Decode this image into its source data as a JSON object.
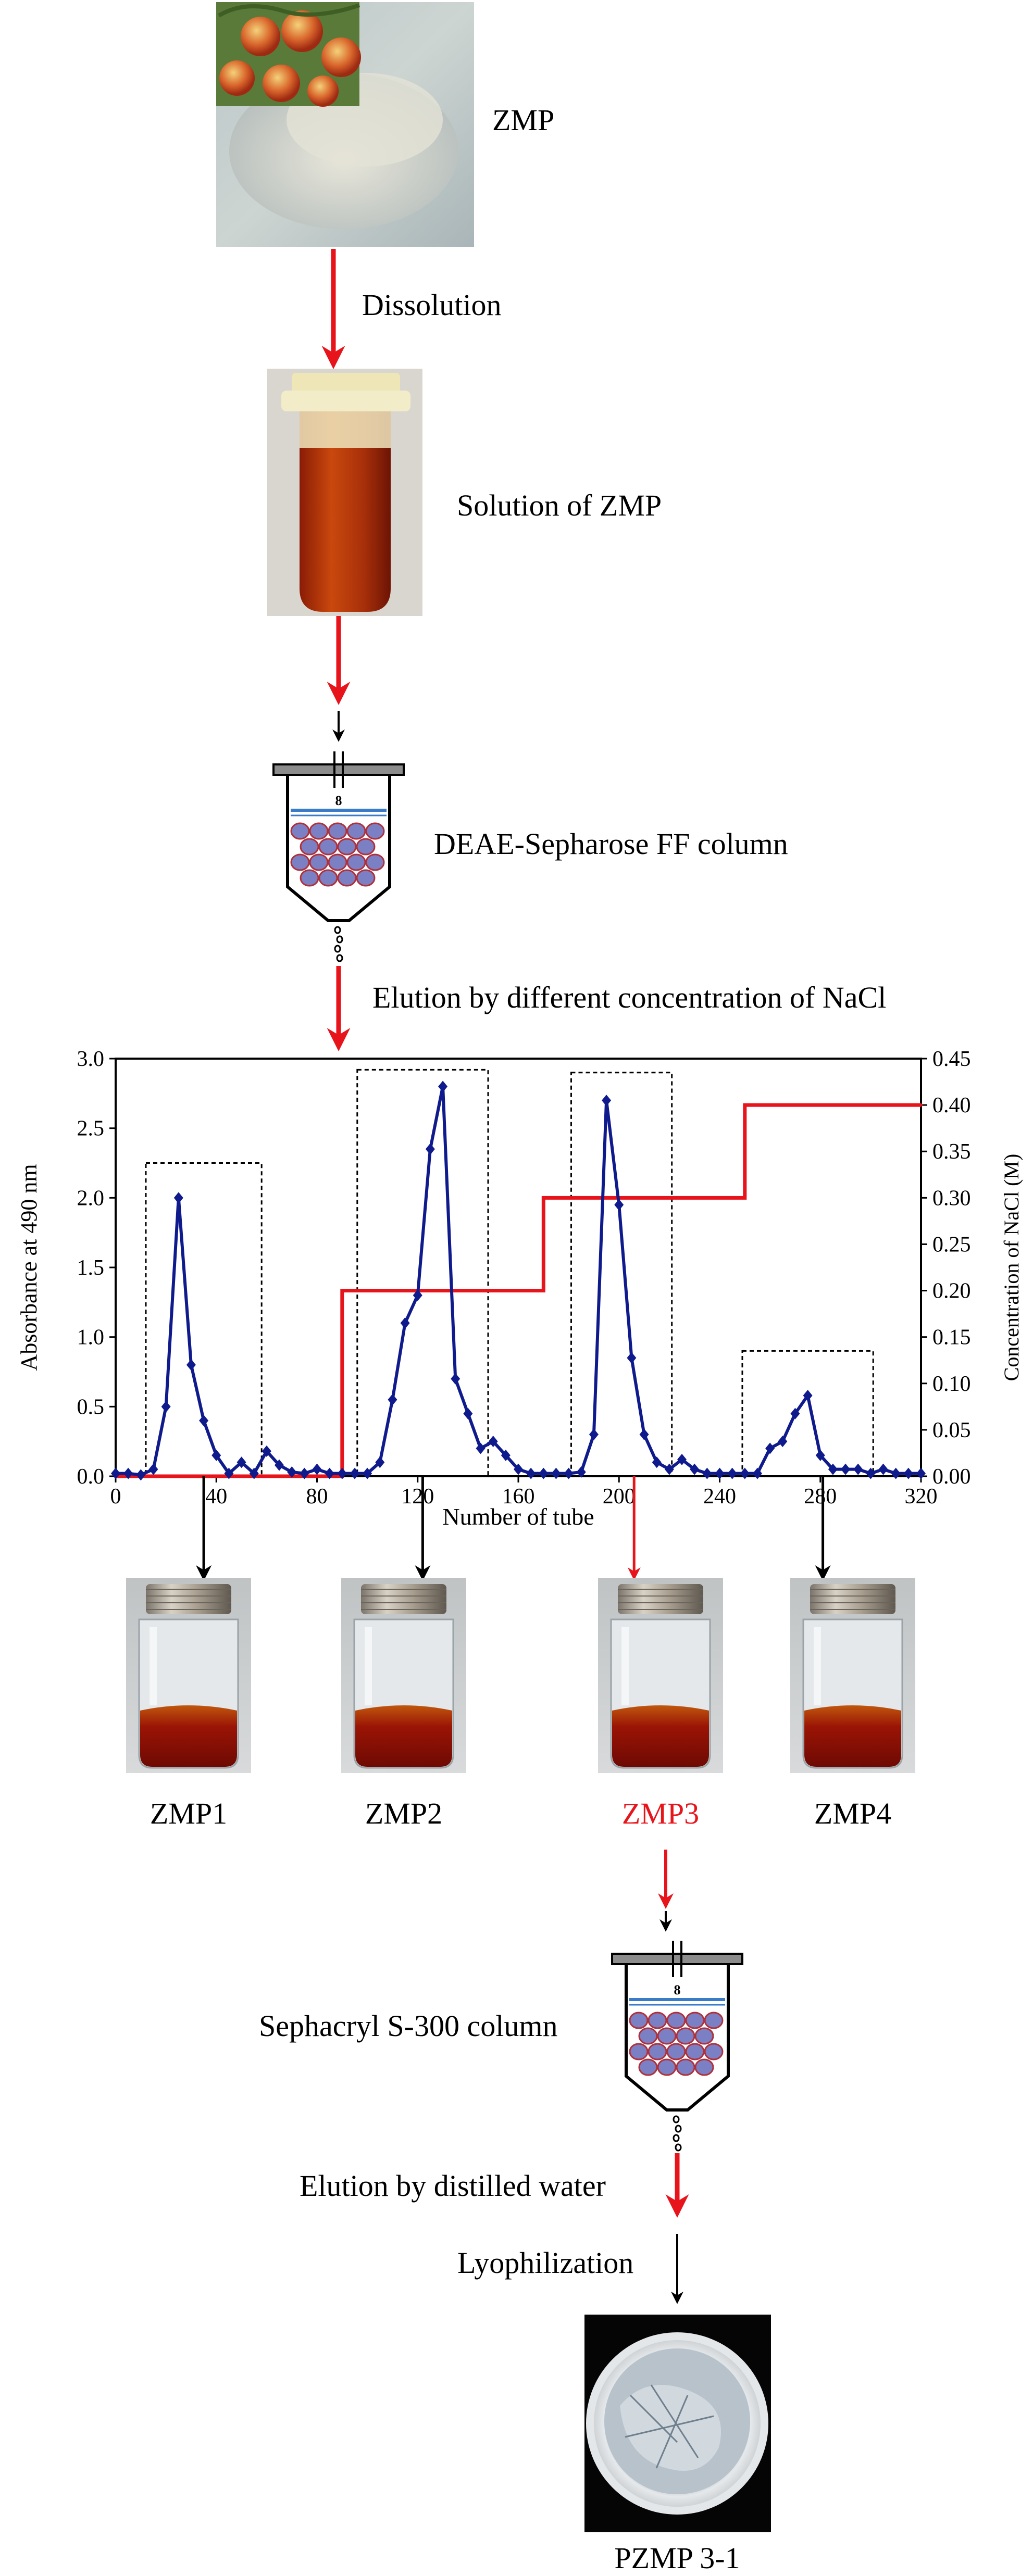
{
  "title": "",
  "steps": {
    "start_label": "ZMP",
    "dissolution_label": "Dissolution",
    "solution_label": "Solution of ZMP",
    "column1_label": "DEAE-Sepharose FF column",
    "elution1_label": "Elution by different concentration  of NaCl",
    "column2_label": "Sephacryl S-300 column",
    "elution2_label": "Elution by distilled water",
    "lyophilization_label": "Lyophilization",
    "final_label": "PZMP 3-1"
  },
  "fractions": [
    {
      "label": "ZMP1",
      "highlight": false
    },
    {
      "label": "ZMP2",
      "highlight": false
    },
    {
      "label": "ZMP3",
      "highlight": true
    },
    {
      "label": "ZMP4",
      "highlight": false
    }
  ],
  "colors": {
    "arrow_red": "#e8141b",
    "arrow_black": "#000000",
    "absorbance_line": "#0f1a8c",
    "nacl_line": "#e8141b",
    "highlight_text": "#e8141b",
    "bead_fill": "#7b7fc4",
    "bead_edge": "#b0303a"
  },
  "icons": [
    "powder-photo",
    "tube-photo",
    "column-icon",
    "vial-photo",
    "petri-dish-photo"
  ],
  "chart_data": {
    "type": "line",
    "xlabel": "Number of tube",
    "ylabel": "Absorbance  at 490 nm",
    "y2label": "Concentration of NaCl (M)",
    "xlim": [
      0,
      320
    ],
    "ylim": [
      0,
      3.0
    ],
    "y2lim": [
      0,
      0.45
    ],
    "xticks": [
      "0",
      "40",
      "80",
      "120",
      "160",
      "200",
      "240",
      "280",
      "320"
    ],
    "yticks": [
      "0.0",
      "0.5",
      "1.0",
      "1.5",
      "2.0",
      "2.5",
      "3.0"
    ],
    "y2ticks": [
      "0.00",
      "0.05",
      "0.10",
      "0.15",
      "0.20",
      "0.25",
      "0.30",
      "0.35",
      "0.40",
      "0.45"
    ],
    "series": [
      {
        "axis": "left",
        "x": [
          0,
          5,
          10,
          15,
          20,
          25,
          30,
          35,
          40,
          45,
          50,
          55,
          60,
          65,
          70,
          75,
          80,
          85,
          90,
          95,
          100,
          105,
          110,
          115,
          120,
          125,
          130,
          135,
          140,
          145,
          150,
          155,
          160,
          165,
          170,
          175,
          180,
          185,
          190,
          195,
          200,
          205,
          210,
          215,
          220,
          225,
          230,
          235,
          240,
          245,
          250,
          255,
          260,
          265,
          270,
          275,
          280,
          285,
          290,
          295,
          300,
          305,
          310,
          315,
          320
        ],
        "y": [
          0.02,
          0.02,
          0.01,
          0.05,
          0.5,
          2.0,
          0.8,
          0.4,
          0.15,
          0.02,
          0.1,
          0.02,
          0.18,
          0.08,
          0.03,
          0.02,
          0.05,
          0.02,
          0.02,
          0.02,
          0.02,
          0.1,
          0.55,
          1.1,
          1.3,
          2.35,
          2.8,
          0.7,
          0.45,
          0.2,
          0.25,
          0.15,
          0.05,
          0.02,
          0.02,
          0.02,
          0.02,
          0.03,
          0.3,
          2.7,
          1.95,
          0.85,
          0.3,
          0.1,
          0.05,
          0.12,
          0.05,
          0.02,
          0.02,
          0.02,
          0.02,
          0.02,
          0.2,
          0.25,
          0.45,
          0.58,
          0.15,
          0.05,
          0.05,
          0.05,
          0.02,
          0.05,
          0.02,
          0.02,
          0.02
        ]
      },
      {
        "axis": "right",
        "x": [
          0,
          80,
          80,
          90,
          90,
          160,
          160,
          170,
          170,
          240,
          240,
          250,
          250,
          320
        ],
        "y": [
          0,
          0,
          0,
          0,
          0.2,
          0.2,
          0.2,
          0.2,
          0.3,
          0.3,
          0.3,
          0.3,
          0.4,
          0.4
        ]
      }
    ],
    "fraction_boxes": [
      {
        "x": [
          12,
          58
        ],
        "ymax": 2.25
      },
      {
        "x": [
          96,
          148
        ],
        "ymax": 2.92
      },
      {
        "x": [
          181,
          221
        ],
        "ymax": 2.9
      },
      {
        "x": [
          249,
          301
        ],
        "ymax": 0.9
      }
    ],
    "grid": false
  }
}
